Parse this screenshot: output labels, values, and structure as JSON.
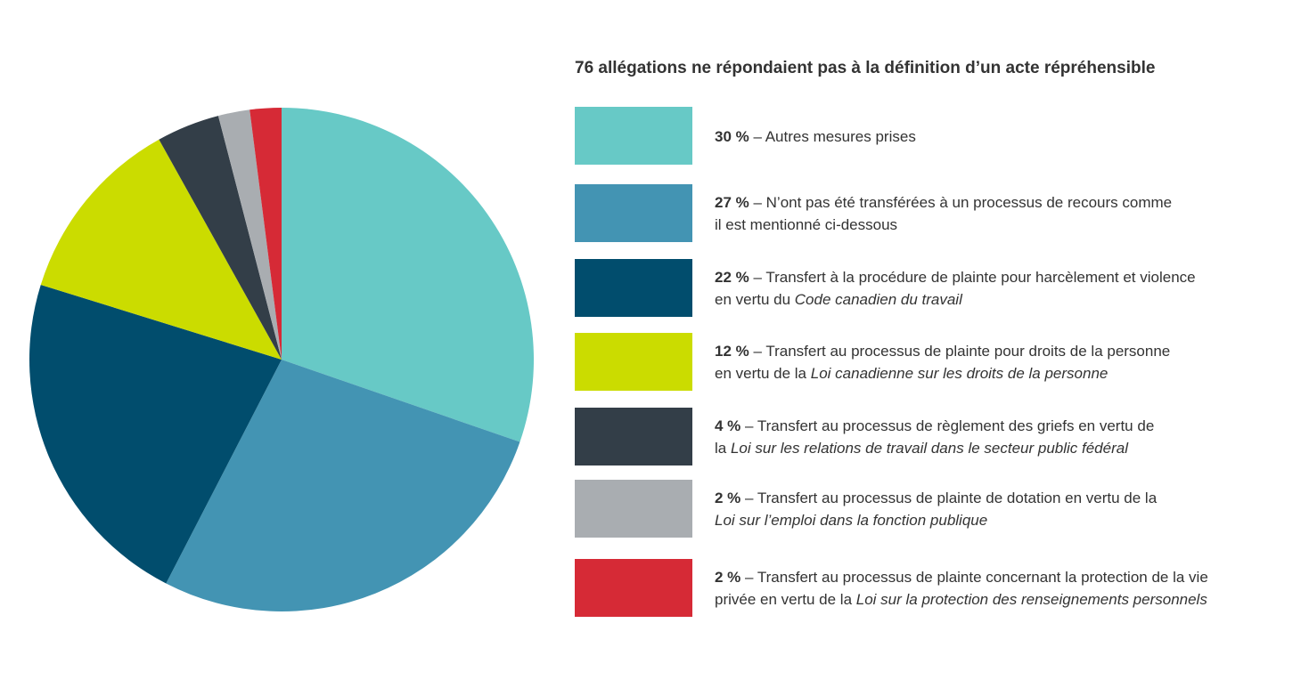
{
  "chart_data": {
    "type": "pie",
    "title": "76 allégations ne répondaient pas à la définition d’un acte répréhensible",
    "slices": [
      {
        "percent_label": "30 %",
        "value": 30,
        "color": "#67c9c6",
        "line1": [
          {
            "t": " – Autres mesures prises",
            "i": false
          }
        ],
        "line2": []
      },
      {
        "percent_label": "27 %",
        "value": 27,
        "color": "#4394b3",
        "line1": [
          {
            "t": " – N’ont pas été transférées à un processus de recours comme",
            "i": false
          }
        ],
        "line2": [
          {
            "t": "il est mentionné ci-dessous",
            "i": false
          }
        ]
      },
      {
        "percent_label": "22 %",
        "value": 22,
        "color": "#014d6d",
        "line1": [
          {
            "t": " – Transfert à la procédure de plainte pour harcèlement et violence",
            "i": false
          }
        ],
        "line2": [
          {
            "t": "en vertu du ",
            "i": false
          },
          {
            "t": "Code canadien du travail",
            "i": true
          }
        ]
      },
      {
        "percent_label": "12 %",
        "value": 12,
        "color": "#cbdc00",
        "line1": [
          {
            "t": " – Transfert au processus de plainte pour droits de la personne",
            "i": false
          }
        ],
        "line2": [
          {
            "t": "en vertu de la ",
            "i": false
          },
          {
            "t": "Loi canadienne sur les droits de la personne",
            "i": true
          }
        ]
      },
      {
        "percent_label": "4 %",
        "value": 4,
        "color": "#333e48",
        "line1": [
          {
            "t": " – Transfert au processus de règlement des griefs en vertu de",
            "i": false
          }
        ],
        "line2": [
          {
            "t": "la ",
            "i": false
          },
          {
            "t": "Loi sur les relations de travail dans le secteur public fédéral",
            "i": true
          }
        ]
      },
      {
        "percent_label": "2 %",
        "value": 2,
        "color": "#a9adb1",
        "line1": [
          {
            "t": " – Transfert au processus de plainte de dotation en vertu de la",
            "i": false
          }
        ],
        "line2": [
          {
            "t": "Loi sur l’emploi dans la fonction publique",
            "i": true
          }
        ]
      },
      {
        "percent_label": "2 %",
        "value": 2,
        "color": "#d62a36",
        "line1": [
          {
            "t": " – Transfert au processus de plainte concernant la protection de la vie",
            "i": false
          }
        ],
        "line2": [
          {
            "t": "privée en vertu de la ",
            "i": false
          },
          {
            "t": "Loi sur la protection des renseignements personnels",
            "i": true
          }
        ]
      }
    ],
    "start": "12 o'clock",
    "direction": "clockwise",
    "legend_placement": "right"
  }
}
